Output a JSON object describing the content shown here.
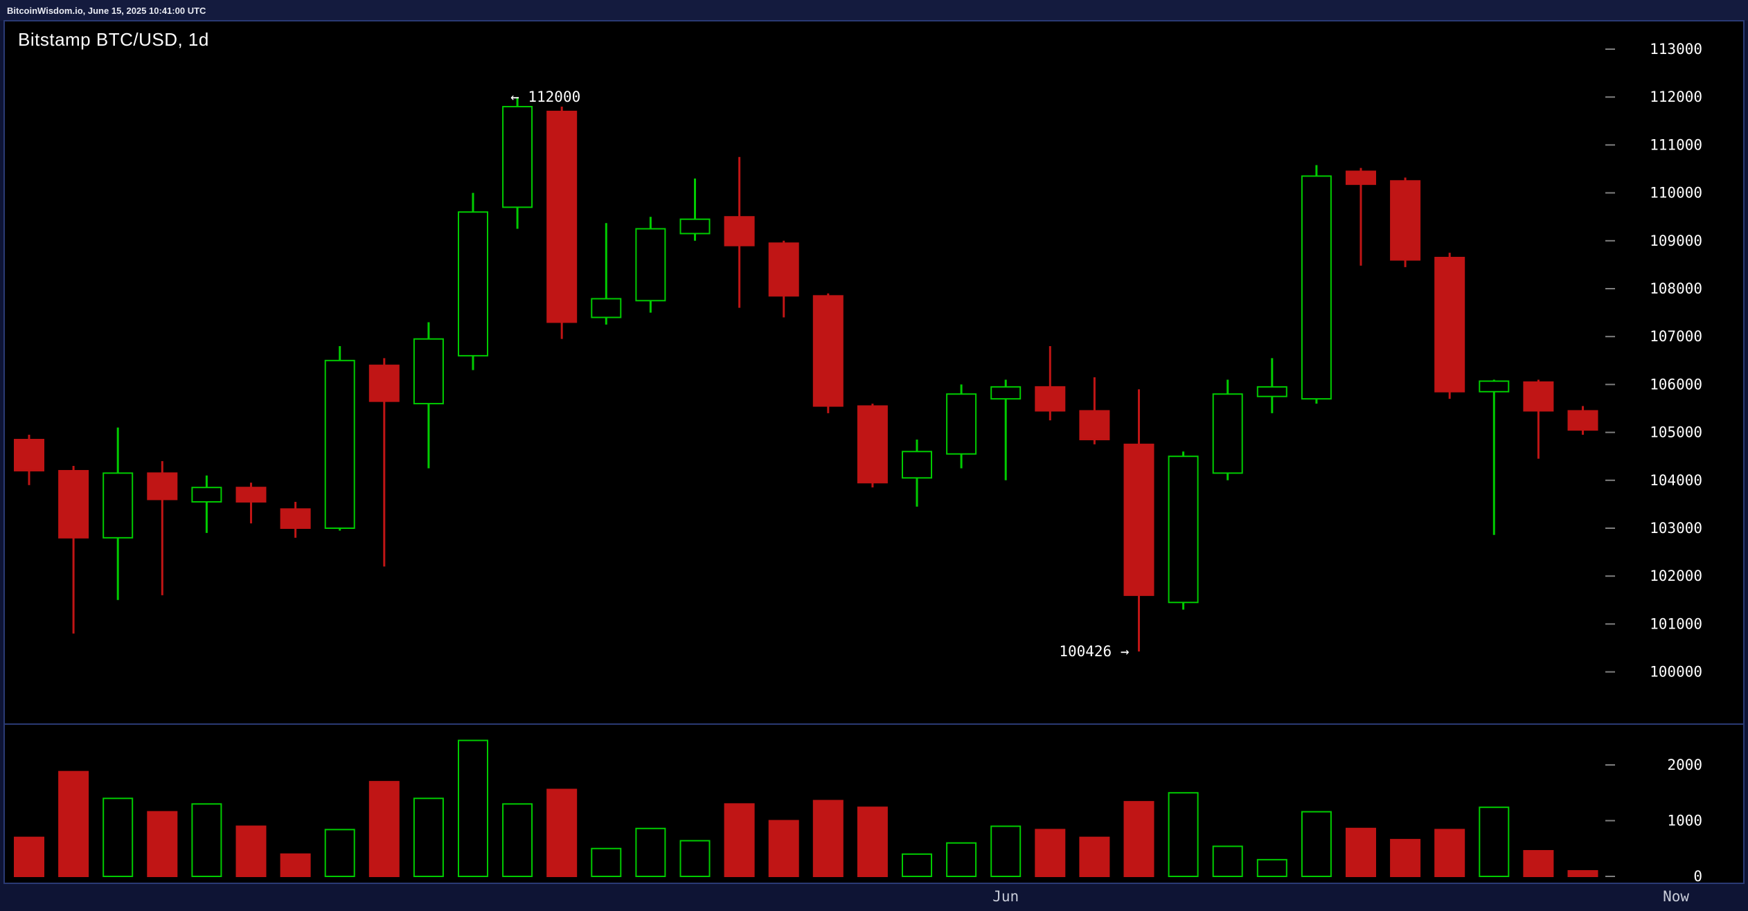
{
  "topbar": {
    "text": "BitcoinWisdom.io, June 15, 2025 10:41:00 UTC"
  },
  "chart": {
    "title": "Bitstamp BTC/USD, 1d"
  },
  "chart_data": {
    "type": "candlestick_with_volume",
    "title": "Bitstamp BTC/USD, 1d",
    "exchange_pair_interval": "Bitstamp BTC/USD, 1d",
    "columns": [
      "open",
      "high",
      "low",
      "close",
      "volume"
    ],
    "candles": [
      [
        104850,
        104950,
        103900,
        104200,
        700
      ],
      [
        104200,
        104300,
        100800,
        102800,
        1880
      ],
      [
        102800,
        105100,
        101500,
        104150,
        1400
      ],
      [
        104150,
        104400,
        101600,
        103600,
        1160
      ],
      [
        103550,
        104100,
        102900,
        103850,
        1300
      ],
      [
        103850,
        103950,
        103100,
        103550,
        900
      ],
      [
        103400,
        103550,
        102800,
        103000,
        400
      ],
      [
        103000,
        106800,
        102950,
        106500,
        840
      ],
      [
        106400,
        106550,
        102200,
        105650,
        1700
      ],
      [
        105600,
        107300,
        104250,
        106950,
        1400
      ],
      [
        106600,
        110000,
        106300,
        109600,
        2440
      ],
      [
        109700,
        112000,
        109250,
        111800,
        1300
      ],
      [
        111700,
        111800,
        106950,
        107300,
        1560
      ],
      [
        107400,
        109370,
        107250,
        107790,
        500
      ],
      [
        107750,
        109500,
        107500,
        109250,
        860
      ],
      [
        109150,
        110300,
        109000,
        109450,
        640
      ],
      [
        109500,
        110750,
        107600,
        108900,
        1300
      ],
      [
        108950,
        109000,
        107400,
        107850,
        1000
      ],
      [
        107850,
        107900,
        105400,
        105550,
        1360
      ],
      [
        105550,
        105600,
        103850,
        103950,
        1240
      ],
      [
        104050,
        104850,
        103450,
        104600,
        400
      ],
      [
        104550,
        106000,
        104250,
        105800,
        600
      ],
      [
        105700,
        106100,
        104000,
        105950,
        900
      ],
      [
        105950,
        106800,
        105250,
        105450,
        840
      ],
      [
        105450,
        106150,
        104750,
        104850,
        700
      ],
      [
        104750,
        105900,
        100426,
        101600,
        1340
      ],
      [
        101450,
        104600,
        101300,
        104500,
        1500
      ],
      [
        104150,
        106100,
        104000,
        105800,
        540
      ],
      [
        105750,
        106550,
        105400,
        105950,
        300
      ],
      [
        105700,
        110580,
        105600,
        110350,
        1160
      ],
      [
        110450,
        110520,
        108480,
        110180,
        860
      ],
      [
        110250,
        110320,
        108450,
        108600,
        660
      ],
      [
        108650,
        108750,
        105700,
        105850,
        840
      ],
      [
        105850,
        106100,
        102860,
        106070,
        1240
      ],
      [
        106050,
        106100,
        104450,
        105450,
        460
      ],
      [
        105450,
        105550,
        104950,
        105050,
        100
      ]
    ],
    "price_axis": {
      "min": 100000,
      "max": 113000,
      "step": 1000,
      "labels": [
        "113000",
        "112000",
        "111000",
        "110000",
        "109000",
        "108000",
        "107000",
        "106000",
        "105000",
        "104000",
        "103000",
        "102000",
        "101000",
        "100000"
      ]
    },
    "volume_axis": {
      "min": 0,
      "max": 2000,
      "step": 1000,
      "labels": [
        "2000",
        "1000",
        "0"
      ]
    },
    "x_axis_labels": [
      {
        "text": "Jun",
        "candle_index": 22
      },
      {
        "text": "Now",
        "candle_index": 37.1
      }
    ],
    "annotations": [
      {
        "text": "← 112000",
        "price": 112000,
        "candle_index": 11,
        "anchor": "start"
      },
      {
        "text": "100426 →",
        "price": 100426,
        "candle_index": 25,
        "anchor": "end"
      }
    ],
    "colors": {
      "bull": "#00CC00",
      "bear": "#C01515",
      "background": "#000000",
      "text": "#FFFFFF",
      "frame": "#0E1434",
      "border": "#2A3A74",
      "tick": "#808080",
      "time_label": "#C8CCD8"
    },
    "legend_position": "none",
    "grid": false
  }
}
